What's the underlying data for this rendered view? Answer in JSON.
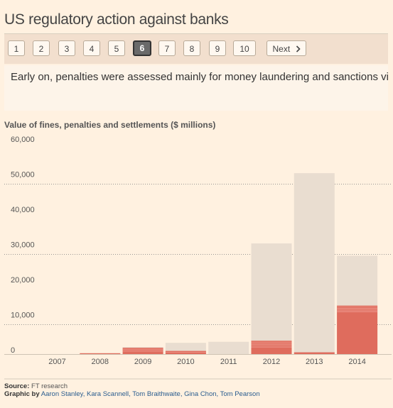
{
  "title": "US regulatory action against banks",
  "pager": {
    "pages": [
      "1",
      "2",
      "3",
      "4",
      "5",
      "6",
      "7",
      "8",
      "9",
      "10"
    ],
    "active": "6",
    "next_label": "Next",
    "next_icon": "chevron-right-icon"
  },
  "caption": "Early on, penalties were assessed mainly for money laundering and sanctions violations",
  "colors": {
    "background": "#fff1e0",
    "total_bar": "#e9ddd0",
    "highlight_bar": "#df6c5d",
    "highlight_stripe": "#f2a49a"
  },
  "chart_data": {
    "type": "bar",
    "title": "Value of fines, penalties and settlements ($ millions)",
    "categories": [
      "2007",
      "2008",
      "2009",
      "2010",
      "2011",
      "2012",
      "2013",
      "2014"
    ],
    "series": [
      {
        "values": [
          0,
          150,
          2000,
          3200,
          3500,
          31500,
          51500,
          28000
        ]
      },
      {
        "values": [
          0,
          150,
          1800,
          900,
          0,
          3800,
          500,
          13800
        ]
      }
    ],
    "yticks": [
      "60,000",
      "50,000",
      "40,000",
      "30,000",
      "20,000",
      "10,000",
      "0"
    ],
    "ylim": [
      0,
      60000
    ],
    "grid": true
  },
  "source": {
    "label": "Source:",
    "text": "FT research"
  },
  "credit": {
    "label": "Graphic by",
    "names": "Aaron Stanley, Kara Scannell, Tom Braithwaite, Gina Chon, Tom Pearson"
  }
}
